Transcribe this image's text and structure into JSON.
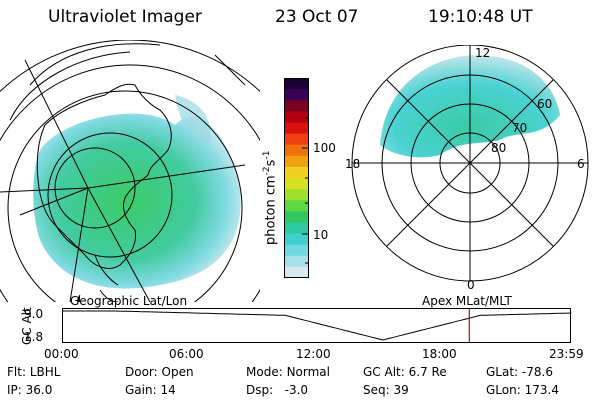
{
  "header": {
    "instrument": "Ultraviolet Imager",
    "date": "23 Oct 07",
    "time": "19:10:48 UT"
  },
  "colorbar": {
    "unit_label": "photon cm",
    "unit_sup1": "-2",
    "unit_s": "s",
    "unit_sup2": "-1",
    "tick_100": "100",
    "tick_10": "10",
    "colors": [
      "#1a0033",
      "#3a0055",
      "#7a0022",
      "#b00010",
      "#d81010",
      "#f04010",
      "#f07010",
      "#f0a010",
      "#f0d020",
      "#d8e020",
      "#a0e030",
      "#60d840",
      "#30c860",
      "#30c8a0",
      "#40d0d0",
      "#70d8e0",
      "#a8e0e8",
      "#d8e8ec"
    ]
  },
  "left_panel": {
    "label": "Geographic Lat/Lon"
  },
  "right_panel": {
    "label": "Apex MLat/MLT",
    "mlt_12": "12",
    "mlt_18": "18",
    "mlt_6": "6",
    "mlt_0": "0",
    "lat_60": "60",
    "lat_70": "70",
    "lat_80": "80"
  },
  "altitude_plot": {
    "axis_label": "GC Alt",
    "y_max": "9.0",
    "y_min": "1.8",
    "x_ticks": [
      "00:00",
      "06:00",
      "12:00",
      "18:00",
      "23:59"
    ],
    "marker_time_hours": 19.18
  },
  "status": {
    "flt_label": "Flt:",
    "flt_value": "LBHL",
    "ip_label": "IP:",
    "ip_value": "36.0",
    "door_label": "Door:",
    "door_value": "Open",
    "gain_label": "Gain:",
    "gain_value": "14",
    "mode_label": "Mode:",
    "mode_value": "Normal",
    "dsp_label": "Dsp:",
    "dsp_value": "-3.0",
    "gcalt_label": "GC Alt:",
    "gcalt_value": "6.7 Re",
    "seq_label": "Seq:",
    "seq_value": "39",
    "glat_label": "GLat:",
    "glat_value": "-78.6",
    "glon_label": "GLon:",
    "glon_value": "173.4"
  }
}
